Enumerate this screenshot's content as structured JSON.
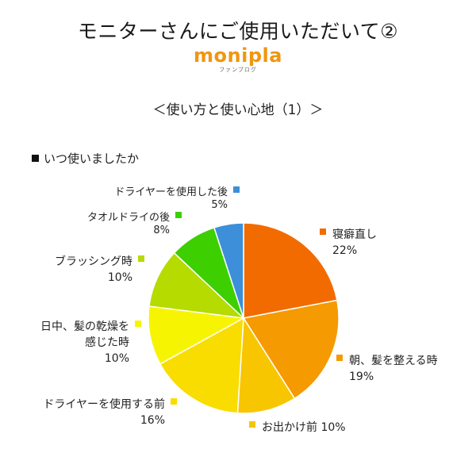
{
  "header": {
    "title": "モニターさんにご使用いただいて②",
    "logo_text": "monipla",
    "logo_sub": "ファンブログ",
    "subtitle": "＜使い方と使い心地（1）＞"
  },
  "question": "いつ使いましたか",
  "chart_data": {
    "type": "pie",
    "title": "",
    "legend": "labels-around",
    "slices": [
      {
        "label": [
          "寝癖直し"
        ],
        "value": 22,
        "value_label": "22%",
        "color": "#f26b00"
      },
      {
        "label": [
          "朝、髪を整える時"
        ],
        "value": 19,
        "value_label": "19%",
        "color": "#f59a00"
      },
      {
        "label": [
          "お出かけ前"
        ],
        "value": 10,
        "value_label": "10%",
        "color": "#f7c600"
      },
      {
        "label": [
          "ドライヤーを使用する前"
        ],
        "value": 16,
        "value_label": "16%",
        "color": "#f9dc00"
      },
      {
        "label": [
          "日中、髪の乾燥を",
          "感じた時"
        ],
        "value": 10,
        "value_label": "10%",
        "color": "#f6f400"
      },
      {
        "label": [
          "ブラッシング時"
        ],
        "value": 10,
        "value_label": "10%",
        "color": "#b5db00"
      },
      {
        "label": [
          "タオルドライの後"
        ],
        "value": 8,
        "value_label": "8%",
        "color": "#3ecf00"
      },
      {
        "label": [
          "ドライヤーを使用した後"
        ],
        "value": 5,
        "value_label": "5%",
        "color": "#3c8fd8"
      }
    ]
  }
}
